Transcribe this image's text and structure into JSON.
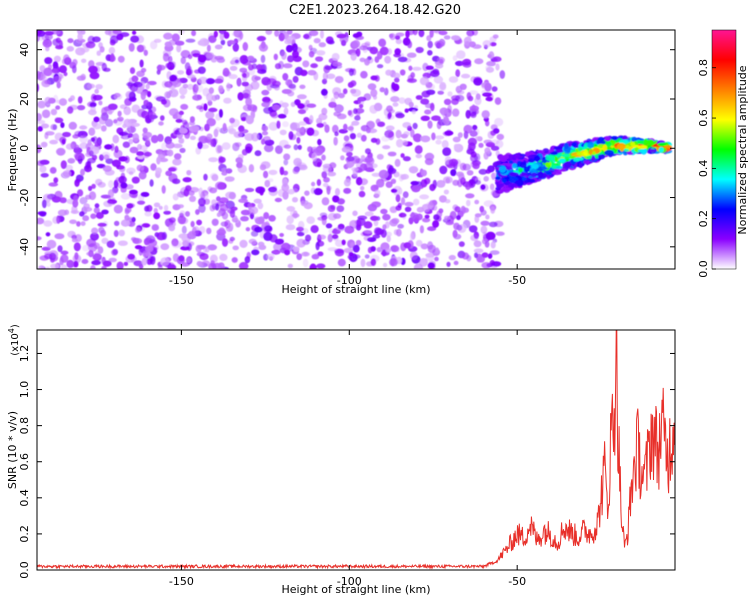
{
  "figure": {
    "title": "C2E1.2023.264.18.42.G20"
  },
  "chart_data": [
    {
      "type": "heatmap",
      "title": "",
      "xlabel": "Height of straight line (km)",
      "ylabel": "Frequency (Hz)",
      "xlim": [
        -193,
        -3
      ],
      "ylim": [
        -49,
        48
      ],
      "xticks": [
        "-150",
        "-100",
        "-50"
      ],
      "xtick_values": [
        -150,
        -100,
        -50
      ],
      "yticks": [
        "40",
        "20",
        "0",
        "-20",
        "-40"
      ],
      "ytick_values": [
        40,
        20,
        0,
        -20,
        -40
      ],
      "noise_region_km": [
        -193,
        -55
      ],
      "signal_track": [
        {
          "x": -56,
          "y": -11
        },
        {
          "x": -50,
          "y": -9
        },
        {
          "x": -45,
          "y": -8
        },
        {
          "x": -40,
          "y": -6
        },
        {
          "x": -35,
          "y": -3
        },
        {
          "x": -30,
          "y": -2
        },
        {
          "x": -25,
          "y": 0
        },
        {
          "x": -20,
          "y": 1
        },
        {
          "x": -15,
          "y": 1
        },
        {
          "x": -10,
          "y": 1
        },
        {
          "x": -5,
          "y": 0
        }
      ],
      "colorbar": {
        "label": "Normalized spectral amplitude",
        "range": [
          0.0,
          0.95
        ],
        "ticks": [
          "0.0",
          "0.2",
          "0.4",
          "0.6",
          "0.8"
        ],
        "tick_values": [
          0.0,
          0.2,
          0.4,
          0.6,
          0.8
        ],
        "colormap": [
          "#ffffff",
          "#8a00ff",
          "#0000ff",
          "#00ffff",
          "#00ff00",
          "#ffff00",
          "#ff7f00",
          "#ff0000",
          "#ff1493"
        ]
      },
      "grid": false
    },
    {
      "type": "line",
      "title": "",
      "xlabel": "Height of straight line (km)",
      "ylabel": "SNR (10 * v/v)",
      "y_multiplier": "(x10",
      "y_multiplier_exp": "4",
      "y_multiplier_close": ")",
      "xlim": [
        -193,
        -3
      ],
      "ylim": [
        0.0,
        1.33
      ],
      "xticks": [
        "-150",
        "-100",
        "-50"
      ],
      "xtick_values": [
        -150,
        -100,
        -50
      ],
      "yticks": [
        "0.0",
        "0.2",
        "0.4",
        "0.6",
        "0.8",
        "1.0",
        "1.2"
      ],
      "ytick_values": [
        0.0,
        0.2,
        0.4,
        0.6,
        0.8,
        1.0,
        1.2
      ],
      "line_color": "#e8302a",
      "series": [
        {
          "x": [
            -193,
            -150,
            -100,
            -60,
            -56,
            -53,
            -50,
            -48,
            -46,
            -44,
            -42,
            -40,
            -38,
            -36,
            -34,
            -32,
            -30,
            -28,
            -26,
            -24,
            -23,
            -22,
            -21,
            -20.5,
            -20,
            -19,
            -18,
            -17,
            -16,
            -15,
            -14,
            -13,
            -12,
            -11,
            -10,
            -9,
            -8,
            -7,
            -6,
            -5,
            -4,
            -3
          ],
          "y": [
            0.02,
            0.02,
            0.02,
            0.02,
            0.05,
            0.12,
            0.2,
            0.18,
            0.25,
            0.16,
            0.22,
            0.2,
            0.15,
            0.24,
            0.21,
            0.18,
            0.22,
            0.2,
            0.26,
            0.55,
            0.35,
            0.75,
            0.9,
            1.33,
            0.8,
            0.3,
            0.12,
            0.22,
            0.45,
            0.6,
            0.68,
            0.55,
            0.5,
            0.62,
            0.78,
            0.72,
            0.65,
            0.8,
            0.7,
            0.62,
            0.75,
            0.84
          ]
        }
      ],
      "grid": false
    }
  ]
}
